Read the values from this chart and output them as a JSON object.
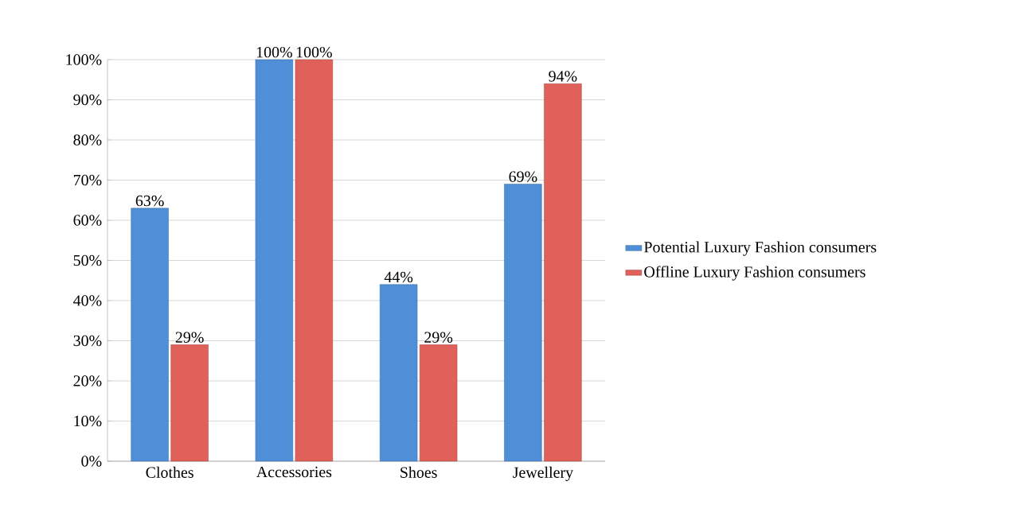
{
  "chart_data": {
    "type": "bar",
    "categories": [
      "Clothes",
      "Accessories",
      "Shoes",
      "Jewellery"
    ],
    "series": [
      {
        "name": "Potential Luxury Fashion consumers",
        "color": "#4f8fd8",
        "values": [
          63,
          100,
          44,
          69
        ],
        "value_labels": [
          "63%",
          "100%",
          "44%",
          "69%"
        ]
      },
      {
        "name": "Offline Luxury Fashion consumers",
        "color": "#e0605a",
        "values": [
          29,
          100,
          29,
          94
        ],
        "value_labels": [
          "29%",
          "100%",
          "29%",
          "94%"
        ]
      }
    ],
    "ylim": [
      0,
      100
    ],
    "yticks": [
      {
        "value": 0,
        "label": "0%"
      },
      {
        "value": 10,
        "label": "10%"
      },
      {
        "value": 20,
        "label": "20%"
      },
      {
        "value": 30,
        "label": "30%"
      },
      {
        "value": 40,
        "label": "40%"
      },
      {
        "value": 50,
        "label": "50%"
      },
      {
        "value": 60,
        "label": "60%"
      },
      {
        "value": 70,
        "label": "70%"
      },
      {
        "value": 80,
        "label": "80%"
      },
      {
        "value": 90,
        "label": "90%"
      },
      {
        "value": 100,
        "label": "100%"
      }
    ],
    "grid": "y",
    "legend": "right"
  }
}
